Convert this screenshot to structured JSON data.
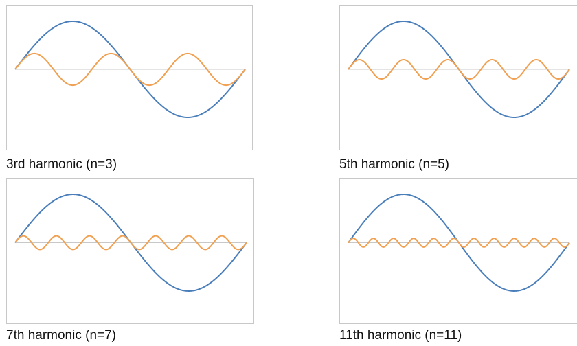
{
  "colors": {
    "fundamental": "#4a7ebb",
    "harmonic": "#f0a050",
    "axis": "#c8c8c8",
    "frame": "#c8c8c8"
  },
  "chart_data": [
    {
      "type": "line",
      "title": "3rd harmonic (n=3)",
      "harmonic_order": 3,
      "x_cycles": [
        0,
        1
      ],
      "ylim": [
        -1.1,
        1.1
      ],
      "grid": false,
      "series": [
        {
          "role": "fundamental",
          "amplitude": 1.0,
          "frequency": 1
        },
        {
          "role": "harmonic",
          "amplitude": 0.33,
          "frequency": 3
        }
      ]
    },
    {
      "type": "line",
      "title": "5th harmonic (n=5)",
      "harmonic_order": 5,
      "x_cycles": [
        0,
        1
      ],
      "ylim": [
        -1.1,
        1.1
      ],
      "grid": false,
      "series": [
        {
          "role": "fundamental",
          "amplitude": 1.0,
          "frequency": 1
        },
        {
          "role": "harmonic",
          "amplitude": 0.2,
          "frequency": 5
        }
      ]
    },
    {
      "type": "line",
      "title": "7th harmonic (n=7)",
      "harmonic_order": 7,
      "x_cycles": [
        0,
        1
      ],
      "ylim": [
        -1.1,
        1.1
      ],
      "grid": false,
      "series": [
        {
          "role": "fundamental",
          "amplitude": 1.0,
          "frequency": 1
        },
        {
          "role": "harmonic",
          "amplitude": 0.14,
          "frequency": 7
        }
      ]
    },
    {
      "type": "line",
      "title": "11th harmonic (n=11)",
      "harmonic_order": 11,
      "x_cycles": [
        0,
        1
      ],
      "ylim": [
        -1.1,
        1.1
      ],
      "grid": false,
      "series": [
        {
          "role": "fundamental",
          "amplitude": 1.0,
          "frequency": 1
        },
        {
          "role": "harmonic",
          "amplitude": 0.09,
          "frequency": 11
        }
      ]
    }
  ]
}
